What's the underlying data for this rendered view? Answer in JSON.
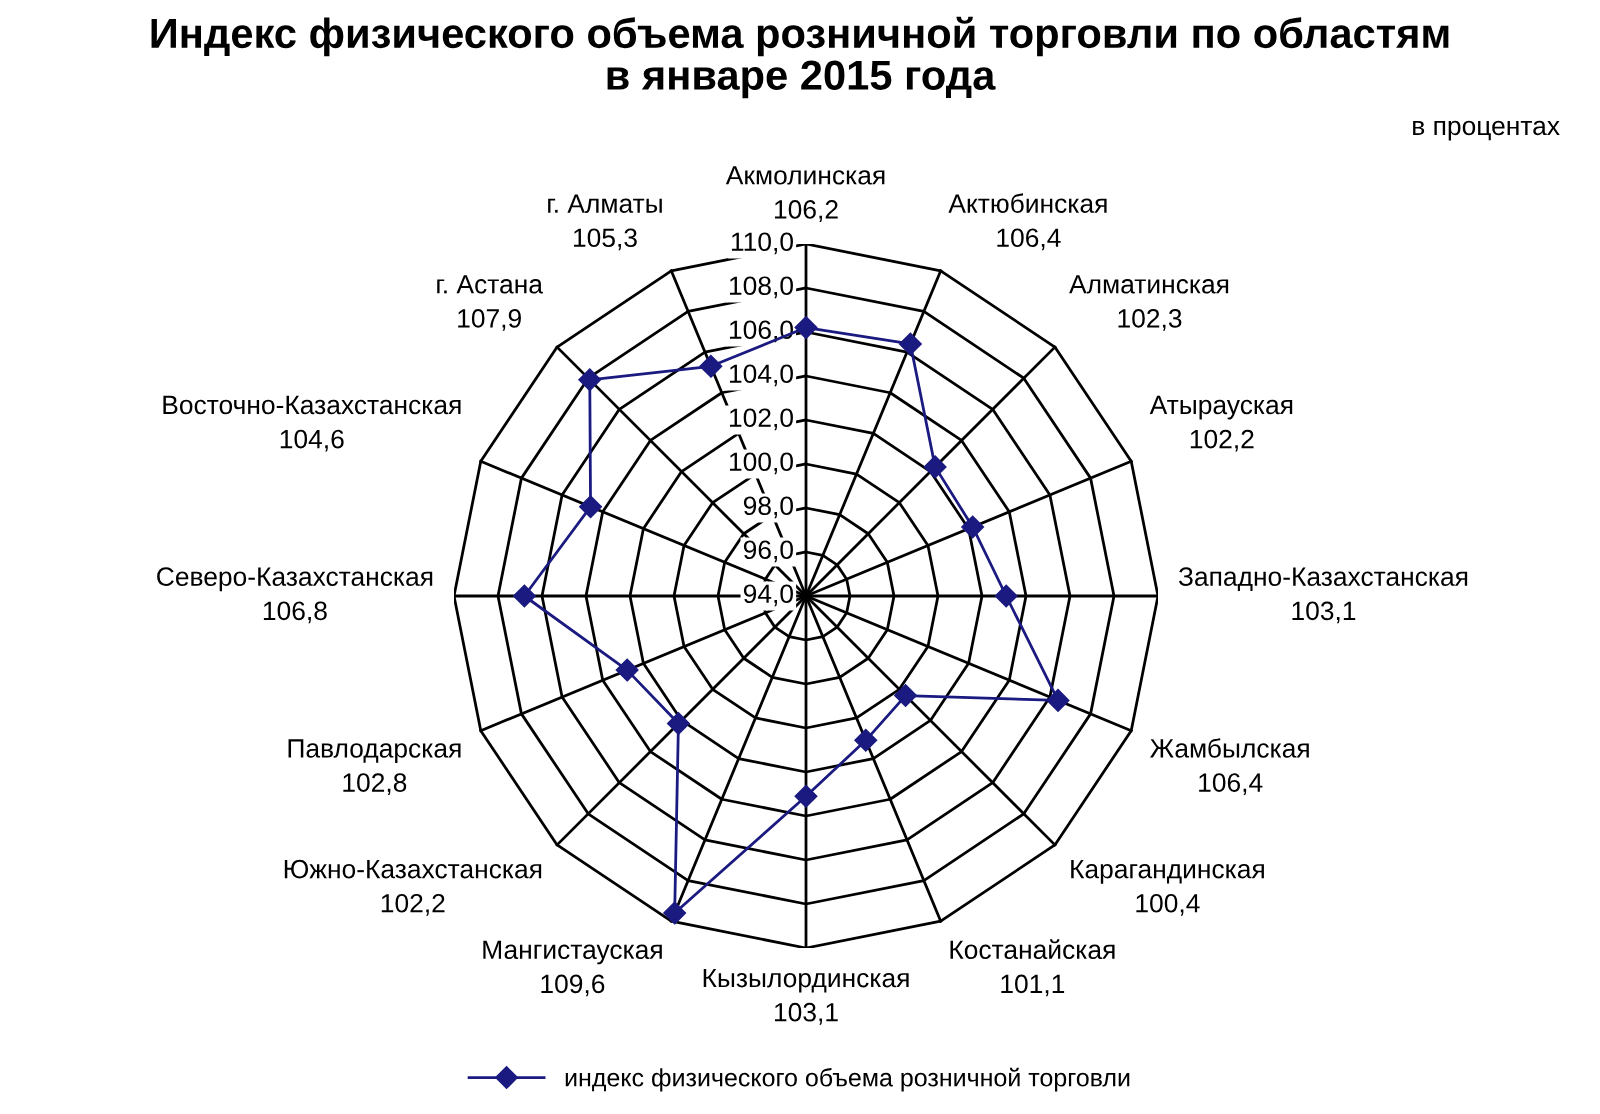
{
  "chart_data": {
    "type": "radar",
    "title": "Индекс физического объема розничной торговли по областям\nв январе 2015 года",
    "subtitle": "в процентах",
    "categories": [
      "Акмолинская\n106,2",
      "Актюбинская\n106,4",
      "Алматинская\n102,3",
      "Атырауская\n102,2",
      "Западно-Казахстанская\n103,1",
      "Жамбылская\n106,4",
      "Карагандинская\n100,4",
      "Костанайская\n101,1",
      "Кызылординская\n103,1",
      "Мангистауская\n109,6",
      "Южно-Казахстанская\n102,2",
      "Павлодарская\n102,8",
      "Северо-Казахстанская\n106,8",
      "Восточно-Казахстанская\n104,6",
      "г. Астана\n107,9",
      "г. Алматы\n105,3"
    ],
    "series": [
      {
        "name": "индекс физического объема розничной торговли",
        "color": "#1a1a80",
        "values": [
          106.2,
          106.4,
          102.3,
          102.2,
          103.1,
          106.4,
          100.4,
          101.1,
          103.1,
          109.6,
          102.2,
          102.8,
          106.8,
          104.6,
          107.9,
          105.3
        ]
      }
    ],
    "ylim": [
      94,
      110
    ],
    "yticks": [
      {
        "value": 94,
        "label": "94,0"
      },
      {
        "value": 96,
        "label": "96,0"
      },
      {
        "value": 98,
        "label": "98,0"
      },
      {
        "value": 100,
        "label": "100,0"
      },
      {
        "value": 102,
        "label": "102,0"
      },
      {
        "value": 104,
        "label": "104,0"
      },
      {
        "value": 106,
        "label": "106,0"
      },
      {
        "value": 108,
        "label": "108,0"
      },
      {
        "value": 110,
        "label": "110,0"
      }
    ],
    "grid": true,
    "legend": "bottom",
    "marker": "diamond",
    "line_style": "solid"
  }
}
